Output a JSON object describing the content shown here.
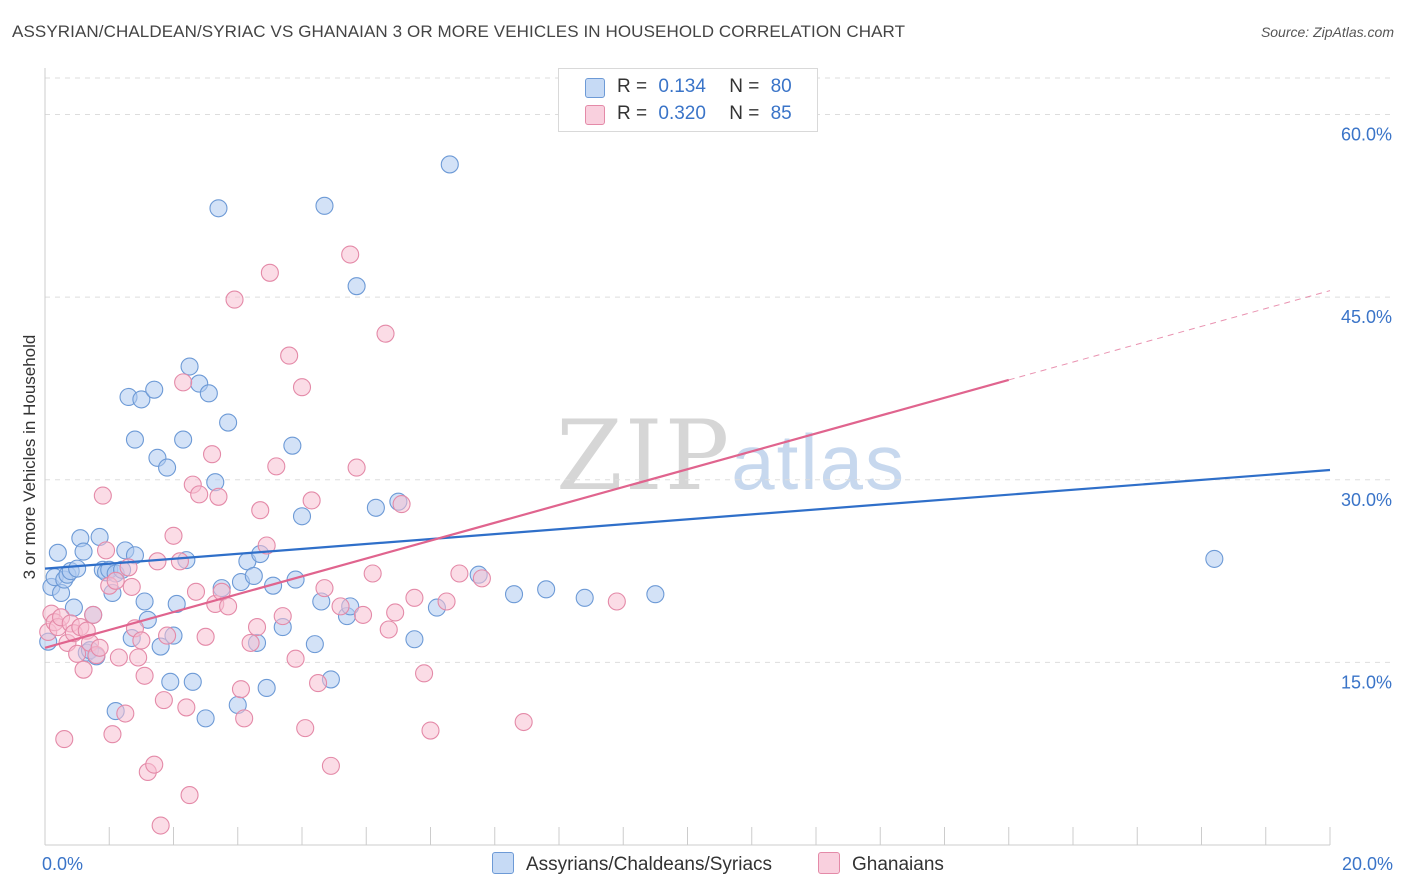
{
  "title": "ASSYRIAN/CHALDEAN/SYRIAC VS GHANAIAN 3 OR MORE VEHICLES IN HOUSEHOLD CORRELATION CHART",
  "source": "Source: ZipAtlas.com",
  "watermark": {
    "zip": "ZIP",
    "atlas": "atlas"
  },
  "legend": {
    "r_label": "R =",
    "n_label": "N =",
    "rows": [
      {
        "r": "0.134",
        "n": "80"
      },
      {
        "r": "0.320",
        "n": "85"
      }
    ]
  },
  "colors": {
    "blue_fill": "#aecbf0",
    "blue_stroke": "#6d9ad6",
    "blue_line": "#2f6fc9",
    "pink_fill": "#f7bfd1",
    "pink_stroke": "#e48aa8",
    "pink_line": "#e0648e",
    "grid": "#dddddd",
    "axis_text": "#3a74c8"
  },
  "chart_data": {
    "type": "scatter",
    "title": "ASSYRIAN/CHALDEAN/SYRIAC VS GHANAIAN 3 OR MORE VEHICLES IN HOUSEHOLD CORRELATION CHART",
    "xlabel": "",
    "ylabel": "3 or more Vehicles in Household",
    "xlim": [
      0,
      20
    ],
    "ylim": [
      0,
      63
    ],
    "x_tick_labels": [
      "0.0%",
      "20.0%"
    ],
    "y_ticks": [
      15,
      30,
      45,
      60
    ],
    "y_tick_labels": [
      "15.0%",
      "30.0%",
      "45.0%",
      "60.0%"
    ],
    "series": [
      {
        "name": "Assyrians/Chaldeans/Syriacs",
        "color": "#6d9ad6",
        "trend": {
          "x0": 0,
          "y0": 22.7,
          "x1": 20,
          "y1": 30.8,
          "dashed_to": 20
        },
        "points": [
          [
            0.05,
            16.7
          ],
          [
            0.1,
            21.2
          ],
          [
            0.15,
            22.0
          ],
          [
            0.2,
            24.0
          ],
          [
            0.25,
            20.7
          ],
          [
            0.3,
            21.8
          ],
          [
            0.35,
            22.2
          ],
          [
            0.4,
            22.5
          ],
          [
            0.45,
            19.5
          ],
          [
            0.5,
            22.7
          ],
          [
            0.55,
            25.2
          ],
          [
            0.6,
            24.1
          ],
          [
            0.65,
            15.8
          ],
          [
            0.7,
            16.0
          ],
          [
            0.75,
            18.9
          ],
          [
            0.8,
            15.5
          ],
          [
            0.85,
            25.3
          ],
          [
            0.9,
            22.6
          ],
          [
            0.95,
            22.4
          ],
          [
            1.0,
            22.6
          ],
          [
            1.05,
            20.7
          ],
          [
            1.1,
            22.3
          ],
          [
            1.1,
            11.0
          ],
          [
            1.2,
            22.6
          ],
          [
            1.25,
            24.2
          ],
          [
            1.3,
            36.8
          ],
          [
            1.35,
            17.0
          ],
          [
            1.4,
            23.8
          ],
          [
            1.4,
            33.3
          ],
          [
            1.5,
            36.6
          ],
          [
            1.55,
            20.0
          ],
          [
            1.6,
            18.5
          ],
          [
            1.7,
            37.4
          ],
          [
            1.75,
            31.8
          ],
          [
            1.8,
            16.3
          ],
          [
            1.9,
            31.0
          ],
          [
            1.95,
            13.4
          ],
          [
            2.0,
            17.2
          ],
          [
            2.05,
            19.8
          ],
          [
            2.15,
            33.3
          ],
          [
            2.2,
            23.4
          ],
          [
            2.25,
            39.3
          ],
          [
            2.3,
            13.4
          ],
          [
            2.4,
            37.9
          ],
          [
            2.5,
            10.4
          ],
          [
            2.55,
            37.1
          ],
          [
            2.65,
            29.8
          ],
          [
            2.7,
            52.3
          ],
          [
            2.75,
            21.1
          ],
          [
            2.85,
            34.7
          ],
          [
            3.0,
            11.5
          ],
          [
            3.05,
            21.6
          ],
          [
            3.15,
            23.3
          ],
          [
            3.25,
            22.1
          ],
          [
            3.3,
            16.6
          ],
          [
            3.35,
            23.9
          ],
          [
            3.45,
            12.9
          ],
          [
            3.55,
            21.3
          ],
          [
            3.7,
            17.9
          ],
          [
            3.85,
            32.8
          ],
          [
            3.9,
            21.8
          ],
          [
            4.0,
            27.0
          ],
          [
            4.2,
            16.5
          ],
          [
            4.3,
            20.0
          ],
          [
            4.35,
            52.5
          ],
          [
            4.45,
            13.6
          ],
          [
            4.7,
            18.8
          ],
          [
            4.75,
            19.6
          ],
          [
            4.85,
            45.9
          ],
          [
            5.15,
            27.7
          ],
          [
            5.5,
            28.2
          ],
          [
            5.75,
            16.9
          ],
          [
            6.1,
            19.5
          ],
          [
            6.3,
            55.9
          ],
          [
            6.75,
            22.2
          ],
          [
            7.3,
            20.6
          ],
          [
            7.8,
            21.0
          ],
          [
            8.4,
            20.3
          ],
          [
            9.5,
            20.6
          ],
          [
            18.2,
            23.5
          ]
        ]
      },
      {
        "name": "Ghanaians",
        "color": "#e48aa8",
        "trend": {
          "x0": 0,
          "y0": 16.2,
          "x1": 15,
          "y1": 38.2,
          "dashed_to": 20
        },
        "points": [
          [
            0.05,
            17.5
          ],
          [
            0.1,
            19.0
          ],
          [
            0.15,
            18.3
          ],
          [
            0.2,
            17.9
          ],
          [
            0.25,
            18.7
          ],
          [
            0.3,
            8.7
          ],
          [
            0.35,
            16.6
          ],
          [
            0.4,
            18.2
          ],
          [
            0.45,
            17.4
          ],
          [
            0.5,
            15.7
          ],
          [
            0.55,
            17.9
          ],
          [
            0.6,
            14.4
          ],
          [
            0.65,
            17.6
          ],
          [
            0.7,
            16.6
          ],
          [
            0.75,
            18.9
          ],
          [
            0.8,
            15.6
          ],
          [
            0.85,
            16.2
          ],
          [
            0.9,
            28.7
          ],
          [
            0.95,
            24.2
          ],
          [
            1.0,
            21.3
          ],
          [
            1.05,
            9.1
          ],
          [
            1.1,
            21.7
          ],
          [
            1.15,
            15.4
          ],
          [
            1.25,
            10.8
          ],
          [
            1.3,
            22.8
          ],
          [
            1.35,
            21.2
          ],
          [
            1.4,
            17.8
          ],
          [
            1.45,
            15.4
          ],
          [
            1.5,
            16.8
          ],
          [
            1.55,
            13.9
          ],
          [
            1.6,
            6.0
          ],
          [
            1.7,
            6.6
          ],
          [
            1.75,
            23.3
          ],
          [
            1.8,
            1.6
          ],
          [
            1.85,
            11.9
          ],
          [
            1.9,
            17.2
          ],
          [
            2.0,
            25.4
          ],
          [
            2.1,
            23.3
          ],
          [
            2.15,
            38.0
          ],
          [
            2.2,
            11.3
          ],
          [
            2.25,
            4.1
          ],
          [
            2.3,
            29.6
          ],
          [
            2.35,
            20.8
          ],
          [
            2.4,
            28.8
          ],
          [
            2.5,
            17.1
          ],
          [
            2.6,
            32.1
          ],
          [
            2.65,
            19.8
          ],
          [
            2.7,
            28.6
          ],
          [
            2.75,
            20.8
          ],
          [
            2.85,
            19.6
          ],
          [
            2.95,
            44.8
          ],
          [
            3.05,
            12.8
          ],
          [
            3.1,
            10.4
          ],
          [
            3.2,
            16.6
          ],
          [
            3.3,
            17.9
          ],
          [
            3.35,
            27.5
          ],
          [
            3.45,
            24.6
          ],
          [
            3.5,
            47.0
          ],
          [
            3.6,
            31.1
          ],
          [
            3.7,
            18.8
          ],
          [
            3.8,
            40.2
          ],
          [
            3.9,
            15.3
          ],
          [
            4.0,
            37.6
          ],
          [
            4.05,
            9.6
          ],
          [
            4.15,
            28.3
          ],
          [
            4.25,
            13.3
          ],
          [
            4.35,
            21.1
          ],
          [
            4.45,
            6.5
          ],
          [
            4.6,
            19.6
          ],
          [
            4.75,
            48.5
          ],
          [
            4.85,
            31.0
          ],
          [
            4.95,
            18.9
          ],
          [
            5.1,
            22.3
          ],
          [
            5.3,
            42.0
          ],
          [
            5.35,
            17.7
          ],
          [
            5.45,
            19.1
          ],
          [
            5.55,
            28.0
          ],
          [
            5.75,
            20.3
          ],
          [
            5.9,
            14.1
          ],
          [
            6.0,
            9.4
          ],
          [
            6.25,
            20.0
          ],
          [
            6.45,
            22.3
          ],
          [
            6.8,
            21.9
          ],
          [
            7.45,
            10.1
          ],
          [
            8.9,
            20.0
          ]
        ]
      }
    ]
  },
  "bottom_legend": [
    {
      "label": "Assyrians/Chaldeans/Syriacs"
    },
    {
      "label": "Ghanaians"
    }
  ]
}
